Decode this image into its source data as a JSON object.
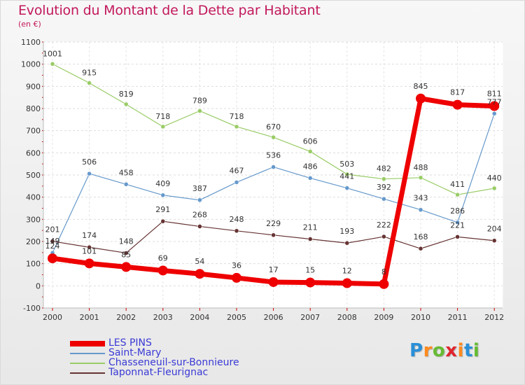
{
  "chart_data": {
    "type": "line",
    "title": "Evolution du Montant de la Dette par Habitant",
    "subtitle": "(en €)",
    "categories": [
      "2000",
      "2001",
      "2002",
      "2003",
      "2004",
      "2005",
      "2006",
      "2007",
      "2008",
      "2009",
      "2010",
      "2011",
      "2012"
    ],
    "ylim": [
      -100,
      1100
    ],
    "yticks": [
      -100,
      0,
      100,
      200,
      300,
      400,
      500,
      600,
      700,
      800,
      900,
      1000,
      1100
    ],
    "grid": true,
    "legend_position": "bottom-left",
    "series": [
      {
        "name": "LES PINS",
        "color": "#ee0000",
        "width": 7,
        "marker": 7,
        "values": [
          124,
          101,
          85,
          69,
          54,
          36,
          17,
          15,
          12,
          8,
          845,
          817,
          811
        ]
      },
      {
        "name": "Saint-Mary",
        "color": "#6699cc",
        "width": 1.2,
        "marker": 3,
        "values": [
          149,
          506,
          458,
          409,
          387,
          467,
          536,
          486,
          441,
          392,
          343,
          286,
          777
        ]
      },
      {
        "name": "Chasseneuil-sur-Bonnieure",
        "color": "#99cc66",
        "width": 1.2,
        "marker": 3,
        "values": [
          1001,
          915,
          819,
          718,
          789,
          718,
          670,
          606,
          503,
          482,
          488,
          411,
          440
        ]
      },
      {
        "name": "Taponnat-Fleurignac",
        "color": "#663333",
        "width": 1.2,
        "marker": 3,
        "values": [
          201,
          174,
          148,
          291,
          268,
          248,
          229,
          211,
          193,
          222,
          168,
          221,
          204
        ]
      }
    ]
  },
  "logo": {
    "letters": [
      "P",
      "r",
      "o",
      "x",
      "i",
      "t",
      "i"
    ],
    "colors": [
      "#2a8fd8",
      "#ff8a1e",
      "#66bb33",
      "#e0252e",
      "#ff8a1e",
      "#2a8fd8",
      "#66bb33"
    ]
  }
}
